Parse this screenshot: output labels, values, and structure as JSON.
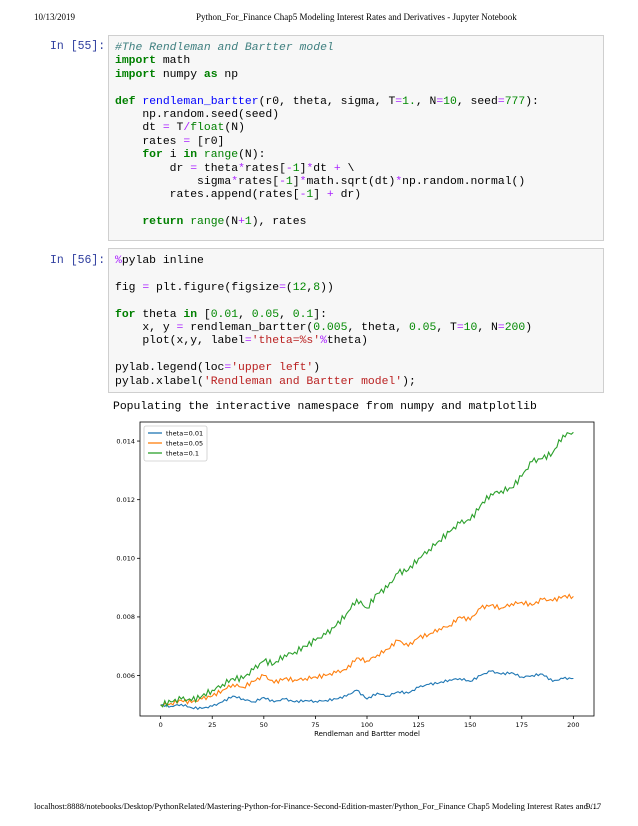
{
  "page_header": {
    "date": "10/13/2019",
    "title": "Python_For_Finance Chap5 Modeling Interest Rates and Derivatives - Jupyter Notebook"
  },
  "cells": [
    {
      "prompt": "In [55]:",
      "lines": [
        "#The Rendleman and Bartter model",
        "import math",
        "import numpy as np",
        "",
        "def rendleman_bartter(r0, theta, sigma, T=1., N=10, seed=777):",
        "    np.random.seed(seed)",
        "    dt = T/float(N)",
        "    rates = [r0]",
        "    for i in range(N):",
        "        dr = theta*rates[-1]*dt + \\",
        "            sigma*rates[-1]*math.sqrt(dt)*np.random.normal()",
        "        rates.append(rates[-1] + dr)",
        "",
        "    return range(N+1), rates"
      ]
    },
    {
      "prompt": "In [56]:",
      "lines": [
        "%pylab inline",
        "",
        "fig = plt.figure(figsize=(12,8))",
        "",
        "for theta in [0.01, 0.05, 0.1]:",
        "    x, y = rendleman_bartter(0.005, theta, 0.05, T=10, N=200)",
        "    plot(x,y, label='theta=%s'%theta)",
        "",
        "pylab.legend(loc='upper left')",
        "pylab.xlabel('Rendleman and Bartter model');"
      ],
      "output_text": "Populating the interactive namespace from numpy and matplotlib"
    }
  ],
  "chart_data": {
    "type": "line",
    "xlabel": "Rendleman and Bartter model",
    "xlim": [
      -10,
      210
    ],
    "ylim": [
      0.00462,
      0.01465
    ],
    "xticks": [
      0,
      25,
      50,
      75,
      100,
      125,
      150,
      175,
      200
    ],
    "xtick_labels": [
      "0",
      "25",
      "50",
      "75",
      "100",
      "125",
      "150",
      "175",
      "200"
    ],
    "yticks": [
      0.006,
      0.008,
      0.01,
      0.012,
      0.014
    ],
    "ytick_labels": [
      "0.006",
      "0.008",
      "0.010",
      "0.012",
      "0.014"
    ],
    "legend_loc": "upper left",
    "grid": false,
    "x": [
      0,
      5,
      10,
      15,
      20,
      25,
      30,
      35,
      40,
      45,
      50,
      55,
      60,
      65,
      70,
      75,
      80,
      85,
      90,
      95,
      100,
      105,
      110,
      115,
      120,
      125,
      130,
      135,
      140,
      145,
      150,
      155,
      160,
      165,
      170,
      175,
      180,
      185,
      190,
      195,
      200
    ],
    "series": [
      {
        "name": "theta=0.01",
        "color": "#1f77b4",
        "values": [
          0.005,
          0.00495,
          0.00502,
          0.0049,
          0.00488,
          0.00495,
          0.0051,
          0.0053,
          0.0052,
          0.0051,
          0.00525,
          0.0051,
          0.0052,
          0.0051,
          0.00515,
          0.00512,
          0.00515,
          0.0052,
          0.0053,
          0.0055,
          0.0052,
          0.0054,
          0.0053,
          0.00545,
          0.0054,
          0.0056,
          0.0057,
          0.00575,
          0.00585,
          0.0059,
          0.0058,
          0.006,
          0.00615,
          0.00605,
          0.0061,
          0.00595,
          0.006,
          0.00605,
          0.0058,
          0.0059,
          0.0059
        ]
      },
      {
        "name": "theta=0.05",
        "color": "#ff7f0e",
        "values": [
          0.005,
          0.00505,
          0.00515,
          0.00508,
          0.0052,
          0.0053,
          0.0055,
          0.0057,
          0.0056,
          0.0058,
          0.006,
          0.00575,
          0.0059,
          0.00585,
          0.0059,
          0.00595,
          0.006,
          0.0061,
          0.0062,
          0.0066,
          0.0065,
          0.0067,
          0.0069,
          0.0072,
          0.007,
          0.0073,
          0.0074,
          0.0076,
          0.0077,
          0.008,
          0.0079,
          0.0083,
          0.0084,
          0.0083,
          0.00845,
          0.0085,
          0.0084,
          0.0086,
          0.00855,
          0.0087,
          0.0087
        ]
      },
      {
        "name": "theta=0.1",
        "color": "#2ca02c",
        "values": [
          0.005,
          0.0051,
          0.0052,
          0.00515,
          0.0053,
          0.0055,
          0.0057,
          0.0059,
          0.0059,
          0.0062,
          0.0065,
          0.0064,
          0.0067,
          0.0068,
          0.007,
          0.0072,
          0.0074,
          0.0077,
          0.0081,
          0.0086,
          0.0083,
          0.0088,
          0.009,
          0.0095,
          0.0096,
          0.01,
          0.0103,
          0.0106,
          0.0109,
          0.0112,
          0.0113,
          0.0118,
          0.0122,
          0.0123,
          0.0124,
          0.0128,
          0.0133,
          0.0134,
          0.0136,
          0.0142,
          0.0143
        ]
      }
    ]
  },
  "page_footer": {
    "url": "localhost:8888/notebooks/Desktop/PythonRelated/Mastering-Python-for-Finance-Second-Edition-master/Python_For_Finance Chap5 Modeling Interest Rates and …",
    "page": "9/17"
  }
}
